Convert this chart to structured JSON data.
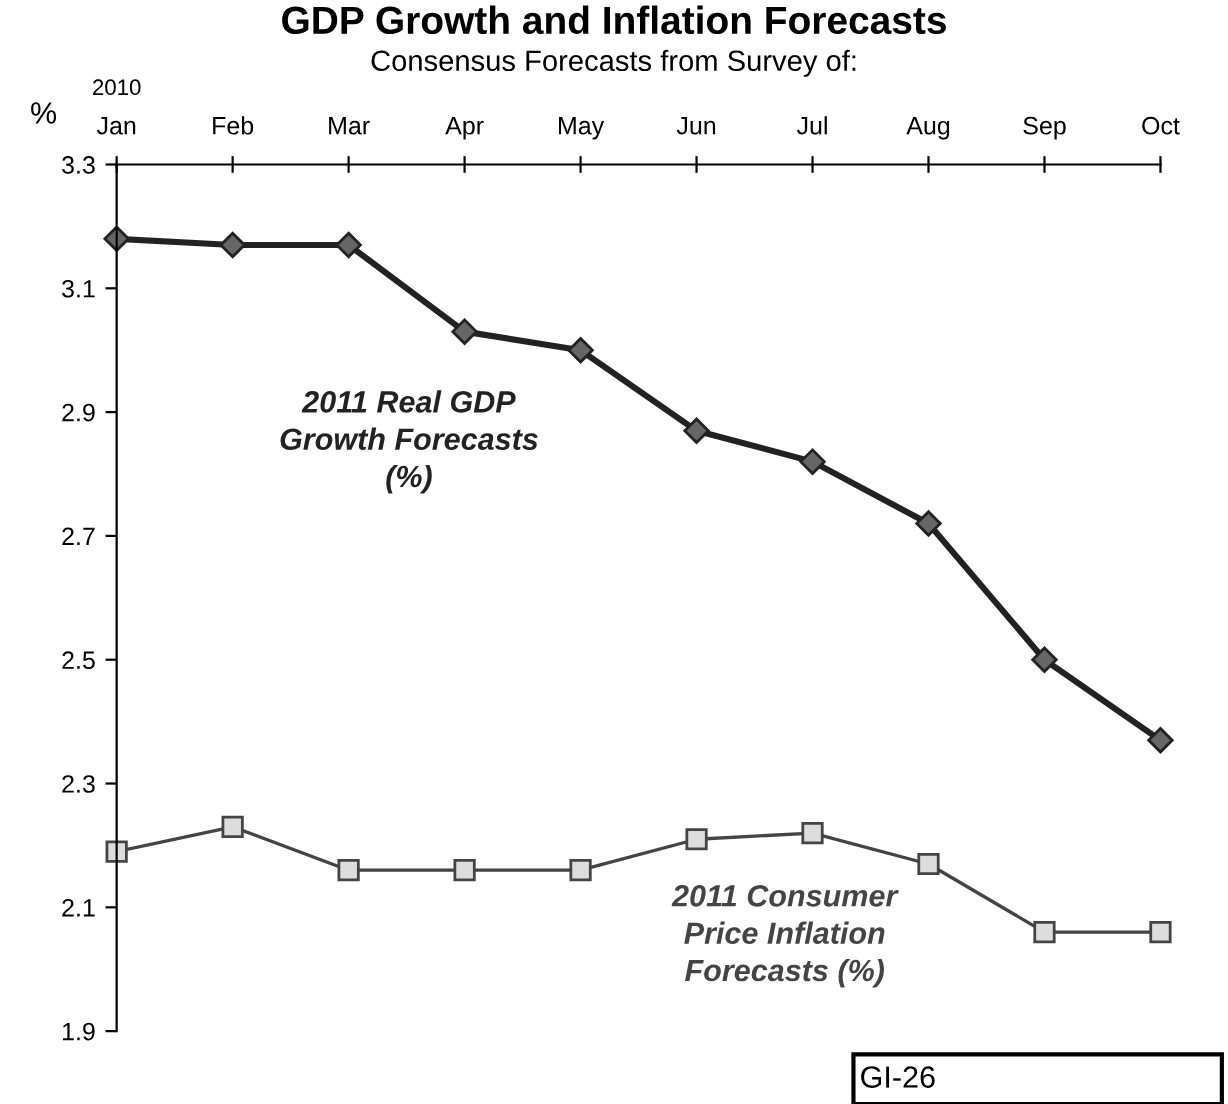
{
  "chart_data": {
    "type": "line",
    "title": "GDP Growth and Inflation Forecasts",
    "subtitle": "Consensus Forecasts from Survey of:",
    "ylabel": "%",
    "categories": [
      "Jan",
      "Feb",
      "Mar",
      "Apr",
      "May",
      "Jun",
      "Jul",
      "Aug",
      "Sep",
      "Oct"
    ],
    "series": [
      {
        "name": "2011 Real GDP Growth Forecasts (%)",
        "color": "#222222",
        "marker": "diamond",
        "values": [
          3.18,
          3.17,
          3.17,
          3.03,
          3.0,
          2.87,
          2.82,
          2.72,
          2.5,
          2.37
        ]
      },
      {
        "name": "2011 Consumer Price Inflation Forecasts (%)",
        "color": "#444444",
        "marker": "square",
        "values": [
          2.19,
          2.23,
          2.16,
          2.16,
          2.16,
          2.21,
          2.22,
          2.17,
          2.06,
          2.06
        ]
      }
    ],
    "ylim": [
      1.9,
      3.3
    ],
    "yticks": [
      1.9,
      2.1,
      2.3,
      2.5,
      2.7,
      2.9,
      3.1,
      3.3
    ],
    "grid": false,
    "legend": false,
    "line_style": "solid",
    "annotations": [
      "2010",
      "GI-26"
    ]
  }
}
